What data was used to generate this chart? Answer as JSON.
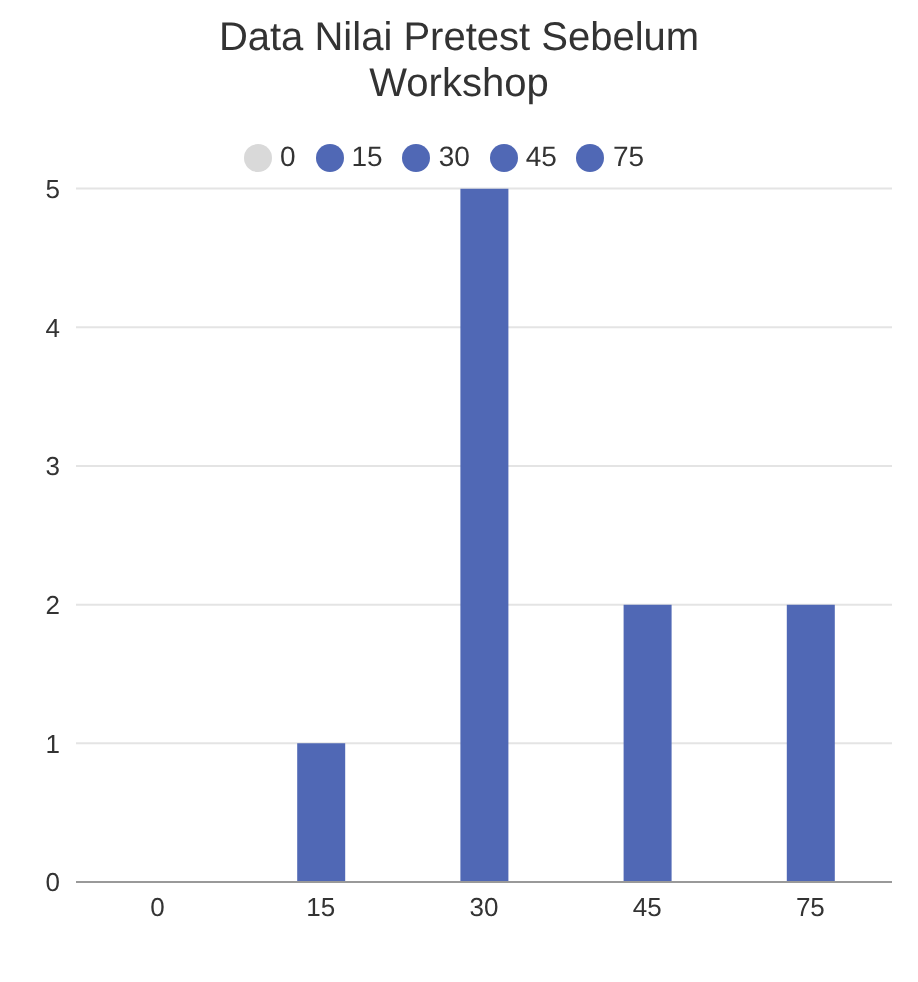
{
  "chart_data": {
    "type": "bar",
    "title": "Data Nilai Pretest Sebelum Workshop",
    "categories": [
      "0",
      "15",
      "30",
      "45",
      "75"
    ],
    "series": [
      {
        "name": "0",
        "color": "#d9d9d9",
        "values": [
          0,
          null,
          null,
          null,
          null
        ]
      },
      {
        "name": "15",
        "color": "#5068b5",
        "values": [
          null,
          1,
          null,
          null,
          null
        ]
      },
      {
        "name": "30",
        "color": "#5068b5",
        "values": [
          null,
          null,
          5,
          null,
          null
        ]
      },
      {
        "name": "45",
        "color": "#5068b5",
        "values": [
          null,
          null,
          null,
          2,
          null
        ]
      },
      {
        "name": "75",
        "color": "#5068b5",
        "values": [
          null,
          null,
          null,
          null,
          2
        ]
      }
    ],
    "stacked": true,
    "ylim": [
      0,
      5
    ],
    "yticks": [
      0,
      1,
      2,
      3,
      4,
      5
    ],
    "grid": "y",
    "legend": "top"
  }
}
